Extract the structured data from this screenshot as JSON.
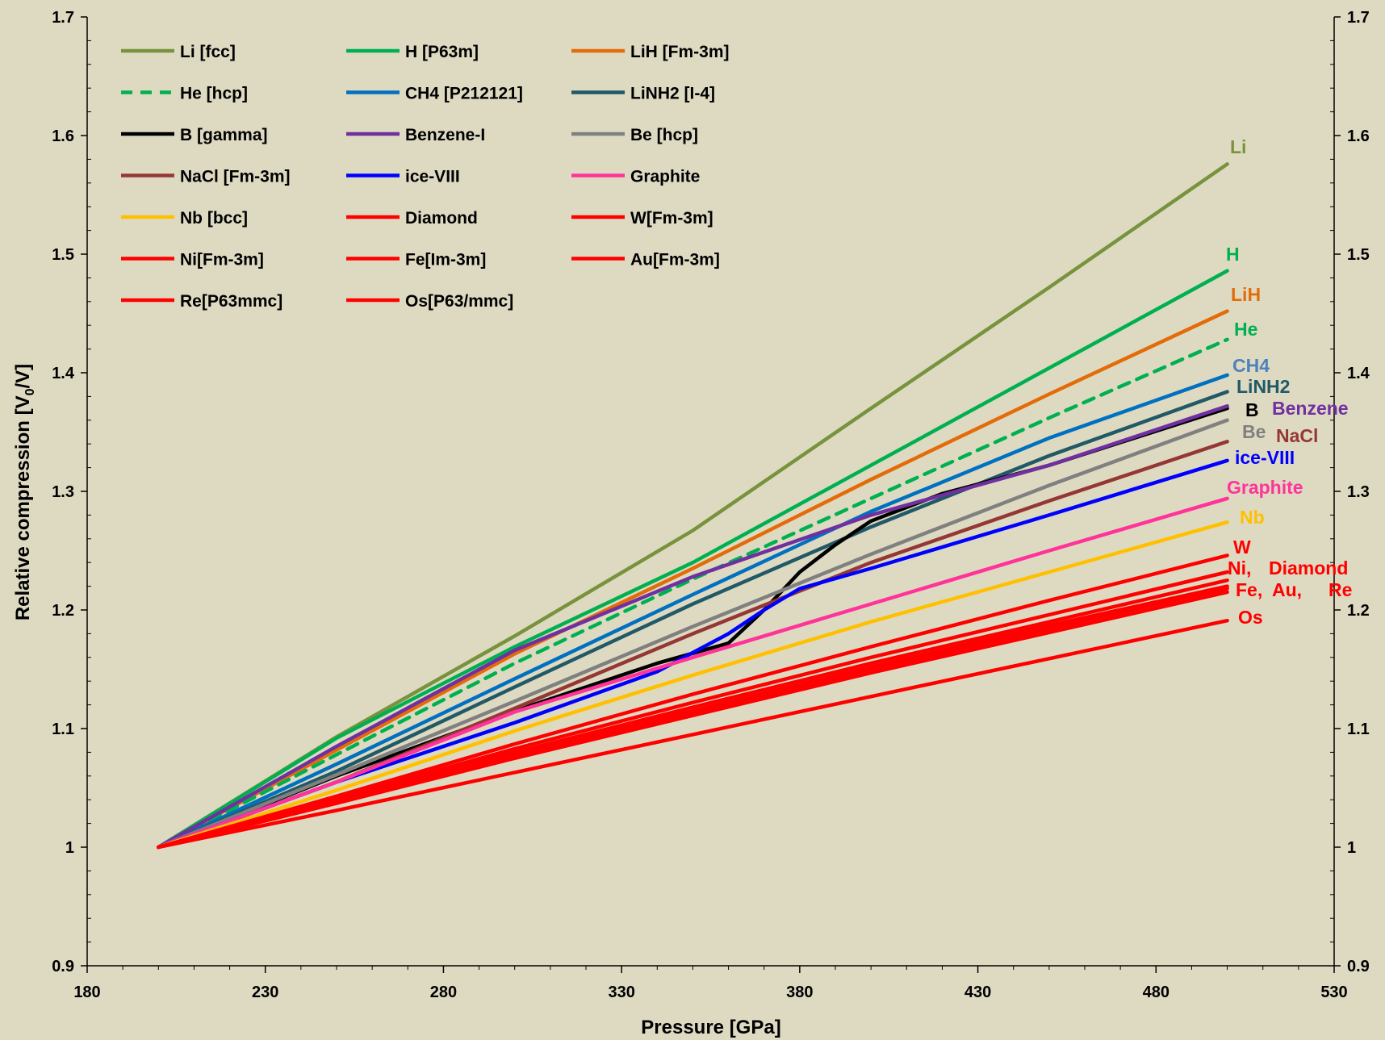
{
  "chart_data": {
    "type": "line",
    "xlabel": "Pressure [GPa]",
    "ylabel_main": "Relative compression [V",
    "ylabel_sub": "0",
    "ylabel_tail": "/V]",
    "xlim": [
      180,
      530
    ],
    "ylim": [
      0.9,
      1.7
    ],
    "x_ticks": [
      180,
      230,
      280,
      330,
      380,
      430,
      480,
      530
    ],
    "y_ticks": [
      0.9,
      1,
      1.1,
      1.2,
      1.3,
      1.4,
      1.5,
      1.6,
      1.7
    ],
    "y_tick_labels": [
      "0.9",
      "1",
      "1.1",
      "1.2",
      "1.3",
      "1.4",
      "1.5",
      "1.6",
      "1.7"
    ],
    "grid": false,
    "legend_position": "top-left",
    "background_color": "#dedac2",
    "series": [
      {
        "name": "Li [fcc]",
        "color": "#77933c",
        "dash": false,
        "x": [
          200,
          250,
          300,
          350,
          400,
          450,
          500
        ],
        "y": [
          1.0,
          1.093,
          1.178,
          1.267,
          1.37,
          1.472,
          1.576
        ]
      },
      {
        "name": "H [P63m]",
        "color": "#00b050",
        "dash": false,
        "x": [
          200,
          250,
          300,
          350,
          400,
          450,
          500
        ],
        "y": [
          1.0,
          1.092,
          1.169,
          1.24,
          1.322,
          1.404,
          1.486
        ]
      },
      {
        "name": "LiH [Fm-3m]",
        "color": "#e36c09",
        "dash": false,
        "x": [
          200,
          250,
          300,
          350,
          400,
          450,
          500
        ],
        "y": [
          1.0,
          1.082,
          1.163,
          1.235,
          1.31,
          1.382,
          1.452
        ]
      },
      {
        "name": "He [hcp]",
        "color": "#00b050",
        "dash": true,
        "x": [
          200,
          250,
          300,
          350,
          400,
          450,
          500
        ],
        "y": [
          1.0,
          1.078,
          1.155,
          1.226,
          1.294,
          1.362,
          1.428
        ]
      },
      {
        "name": "CH4 [P212121]",
        "color": "#0070c0",
        "dash": false,
        "x": [
          200,
          250,
          300,
          350,
          400,
          450,
          500
        ],
        "y": [
          1.0,
          1.07,
          1.142,
          1.213,
          1.283,
          1.345,
          1.398
        ]
      },
      {
        "name": "LiNH2 [I-4]",
        "color": "#215967",
        "dash": false,
        "x": [
          200,
          250,
          300,
          350,
          400,
          450,
          500
        ],
        "y": [
          1.0,
          1.064,
          1.135,
          1.205,
          1.27,
          1.33,
          1.384
        ]
      },
      {
        "name": "B [gamma]",
        "color": "#000000",
        "dash": false,
        "x": [
          200,
          250,
          300,
          340,
          360,
          370,
          380,
          390,
          400,
          420,
          450,
          500
        ],
        "y": [
          1.0,
          1.06,
          1.115,
          1.155,
          1.172,
          1.2,
          1.232,
          1.255,
          1.275,
          1.298,
          1.322,
          1.37
        ]
      },
      {
        "name": "Benzene-I",
        "color": "#7030a0",
        "dash": false,
        "x": [
          200,
          250,
          300,
          350,
          400,
          450,
          500
        ],
        "y": [
          1.0,
          1.085,
          1.166,
          1.228,
          1.28,
          1.322,
          1.372
        ]
      },
      {
        "name": "Be [hcp]",
        "color": "#808080",
        "dash": false,
        "x": [
          200,
          250,
          300,
          350,
          400,
          450,
          500
        ],
        "y": [
          1.0,
          1.061,
          1.123,
          1.186,
          1.247,
          1.305,
          1.36
        ]
      },
      {
        "name": "NaCl [Fm-3m]",
        "color": "#953735",
        "dash": false,
        "x": [
          200,
          250,
          300,
          350,
          400,
          450,
          500
        ],
        "y": [
          1.0,
          1.055,
          1.117,
          1.18,
          1.24,
          1.292,
          1.342
        ]
      },
      {
        "name": "ice-VIII",
        "color": "#0000ff",
        "dash": false,
        "x": [
          200,
          250,
          300,
          340,
          360,
          370,
          380,
          400,
          450,
          500
        ],
        "y": [
          1.0,
          1.055,
          1.105,
          1.148,
          1.18,
          1.2,
          1.218,
          1.235,
          1.28,
          1.326
        ]
      },
      {
        "name": "Graphite",
        "color": "#ff3399",
        "dash": false,
        "x": [
          200,
          250,
          300,
          350,
          400,
          450,
          500
        ],
        "y": [
          1.0,
          1.055,
          1.114,
          1.16,
          1.205,
          1.25,
          1.294
        ]
      },
      {
        "name": "Nb [bcc]",
        "color": "#ffc000",
        "dash": false,
        "x": [
          200,
          250,
          300,
          350,
          400,
          450,
          500
        ],
        "y": [
          1.0,
          1.048,
          1.098,
          1.145,
          1.19,
          1.232,
          1.274
        ]
      },
      {
        "name": "Diamond",
        "color": "#ff0000",
        "dash": false,
        "x": [
          200,
          250,
          300,
          350,
          400,
          450,
          500
        ],
        "y": [
          1.0,
          1.041,
          1.083,
          1.122,
          1.16,
          1.196,
          1.232
        ]
      },
      {
        "name": "W[Fm-3m]",
        "color": "#ff0000",
        "dash": false,
        "x": [
          200,
          250,
          300,
          350,
          400,
          450,
          500
        ],
        "y": [
          1.0,
          1.043,
          1.087,
          1.129,
          1.169,
          1.208,
          1.246
        ]
      },
      {
        "name": "Ni[Fm-3m]",
        "color": "#ff0000",
        "dash": false,
        "x": [
          200,
          250,
          300,
          350,
          400,
          450,
          500
        ],
        "y": [
          1.0,
          1.04,
          1.08,
          1.118,
          1.155,
          1.19,
          1.225
        ]
      },
      {
        "name": "Fe[Im-3m]",
        "color": "#ff0000",
        "dash": false,
        "x": [
          200,
          250,
          300,
          350,
          400,
          450,
          500
        ],
        "y": [
          1.0,
          1.039,
          1.078,
          1.115,
          1.152,
          1.187,
          1.22
        ]
      },
      {
        "name": "Au[Fm-3m]",
        "color": "#ff0000",
        "dash": false,
        "x": [
          200,
          250,
          300,
          350,
          400,
          450,
          500
        ],
        "y": [
          1.0,
          1.038,
          1.077,
          1.113,
          1.15,
          1.184,
          1.218
        ]
      },
      {
        "name": "Re[P63mmc]",
        "color": "#ff0000",
        "dash": false,
        "x": [
          200,
          250,
          300,
          350,
          400,
          450,
          500
        ],
        "y": [
          1.0,
          1.037,
          1.075,
          1.111,
          1.147,
          1.181,
          1.215
        ]
      },
      {
        "name": "Os[P63/mmc]",
        "color": "#ff0000",
        "dash": false,
        "x": [
          200,
          250,
          300,
          350,
          400,
          450,
          500
        ],
        "y": [
          1.0,
          1.031,
          1.063,
          1.095,
          1.127,
          1.159,
          1.191
        ]
      }
    ],
    "end_labels": [
      {
        "text": "Li",
        "color": "#77933c"
      },
      {
        "text": "H",
        "color": "#00b050"
      },
      {
        "text": "LiH",
        "color": "#e36c09"
      },
      {
        "text": "He",
        "color": "#00b050"
      },
      {
        "text": "CH4",
        "color": "#4f81bd"
      },
      {
        "text": "LiNH2",
        "color": "#215967"
      },
      {
        "text": "B",
        "color": "#000000"
      },
      {
        "text": "Benzene",
        "color": "#7030a0"
      },
      {
        "text": "Be",
        "color": "#808080"
      },
      {
        "text": "NaCl",
        "color": "#953735"
      },
      {
        "text": "ice-VIII",
        "color": "#0000ff"
      },
      {
        "text": "Graphite",
        "color": "#ff3399"
      },
      {
        "text": "Nb",
        "color": "#ffc000"
      },
      {
        "text": "W",
        "color": "#ff0000"
      },
      {
        "text": "Ni,",
        "color": "#ff0000"
      },
      {
        "text": "Diamond",
        "color": "#ff0000"
      },
      {
        "text": "Fe,",
        "color": "#ff0000"
      },
      {
        "text": "Au,",
        "color": "#ff0000"
      },
      {
        "text": "Re",
        "color": "#ff0000"
      },
      {
        "text": "Os",
        "color": "#ff0000"
      }
    ]
  }
}
